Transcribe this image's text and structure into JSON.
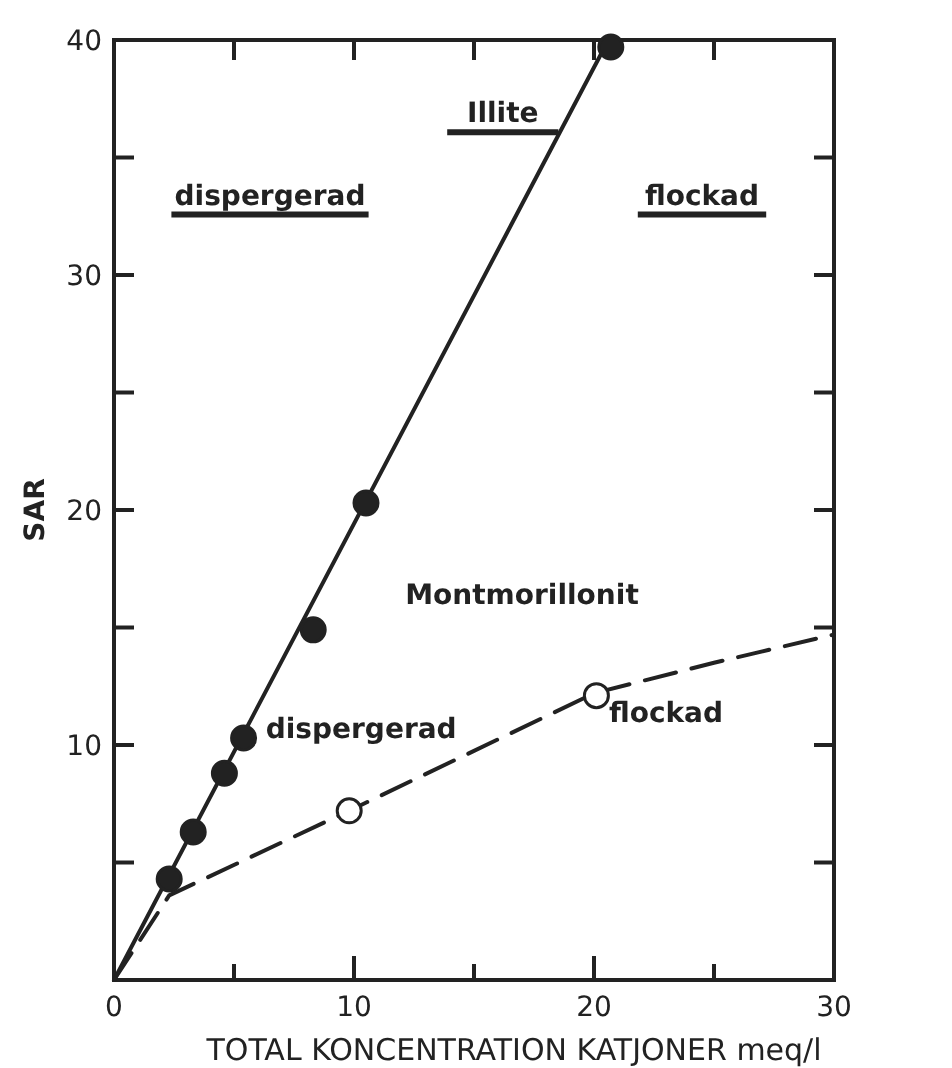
{
  "chart_data": {
    "type": "scatter",
    "xlabel": "TOTAL KONCENTRATION KATJONER  meq/l",
    "ylabel": "SAR",
    "xlim": [
      0,
      30
    ],
    "ylim": [
      0,
      40
    ],
    "xticks": [
      0,
      {
        "value": 5,
        "label": null
      },
      10,
      {
        "value": 15,
        "label": null
      },
      20,
      {
        "value": 25,
        "label": null
      },
      30
    ],
    "yticks": [
      {
        "value": 0,
        "label": null
      },
      {
        "value": 5,
        "label": null
      },
      10,
      {
        "value": 15,
        "label": null
      },
      20,
      {
        "value": 25,
        "label": null
      },
      30,
      {
        "value": 35,
        "label": null
      },
      40
    ],
    "series": [
      {
        "type": "line",
        "color": "#222222",
        "line_style": "solid",
        "x": [
          0,
          20.6
        ],
        "values": [
          0,
          40
        ]
      },
      {
        "color": "#222222",
        "marker": "circle",
        "x": [
          2.3,
          3.3,
          4.6,
          5.4,
          8.3,
          10.5,
          20.7
        ],
        "values": [
          4.3,
          6.3,
          8.8,
          10.3,
          14.9,
          20.3,
          39.7
        ]
      },
      {
        "type": "line",
        "color": "#222222",
        "line_style": "dashed",
        "x": [
          0,
          2.3,
          10,
          20,
          25,
          30
        ],
        "values": [
          0,
          3.6,
          7.3,
          12.2,
          13.5,
          14.7
        ]
      },
      {
        "color": "#ffffff",
        "marker": "circle",
        "x": [
          9.8,
          20.1
        ],
        "values": [
          7.2,
          12.1
        ]
      }
    ],
    "annotations": [
      "Illite",
      "dispergerad",
      "flockad",
      "Montmorillonit",
      "dispergerad",
      "flockad"
    ]
  }
}
